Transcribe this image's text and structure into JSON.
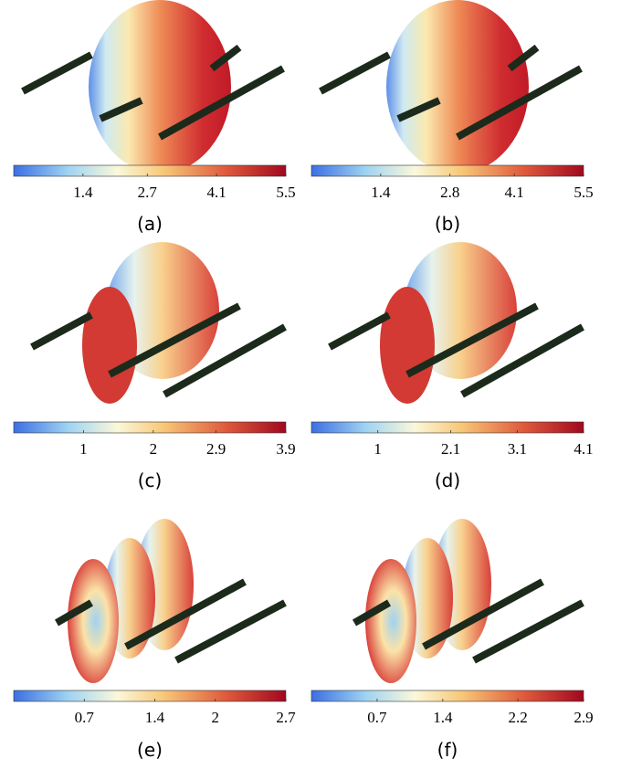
{
  "panels": [
    {
      "label": "(a)",
      "colorbar": {
        "clim": [
          0,
          5.5
        ],
        "ticks": [
          1.4,
          2.7,
          4.1,
          5.5
        ]
      }
    },
    {
      "label": "(b)",
      "colorbar": {
        "clim": [
          0,
          5.5
        ],
        "ticks": [
          1.4,
          2.8,
          4.1,
          5.5
        ]
      }
    },
    {
      "label": "(c)",
      "colorbar": {
        "clim": [
          0,
          3.9
        ],
        "ticks": [
          1,
          2,
          2.9,
          3.9
        ]
      }
    },
    {
      "label": "(d)",
      "colorbar": {
        "clim": [
          0,
          4.1
        ],
        "ticks": [
          1,
          2.1,
          3.1,
          4.1
        ]
      }
    },
    {
      "label": "(e)",
      "colorbar": {
        "clim": [
          0,
          2.7
        ],
        "ticks": [
          0.7,
          1.4,
          2,
          2.7
        ]
      }
    },
    {
      "label": "(f)",
      "colorbar": {
        "clim": [
          0,
          2.9
        ],
        "ticks": [
          0.7,
          1.4,
          2.2,
          2.9
        ]
      }
    }
  ]
}
